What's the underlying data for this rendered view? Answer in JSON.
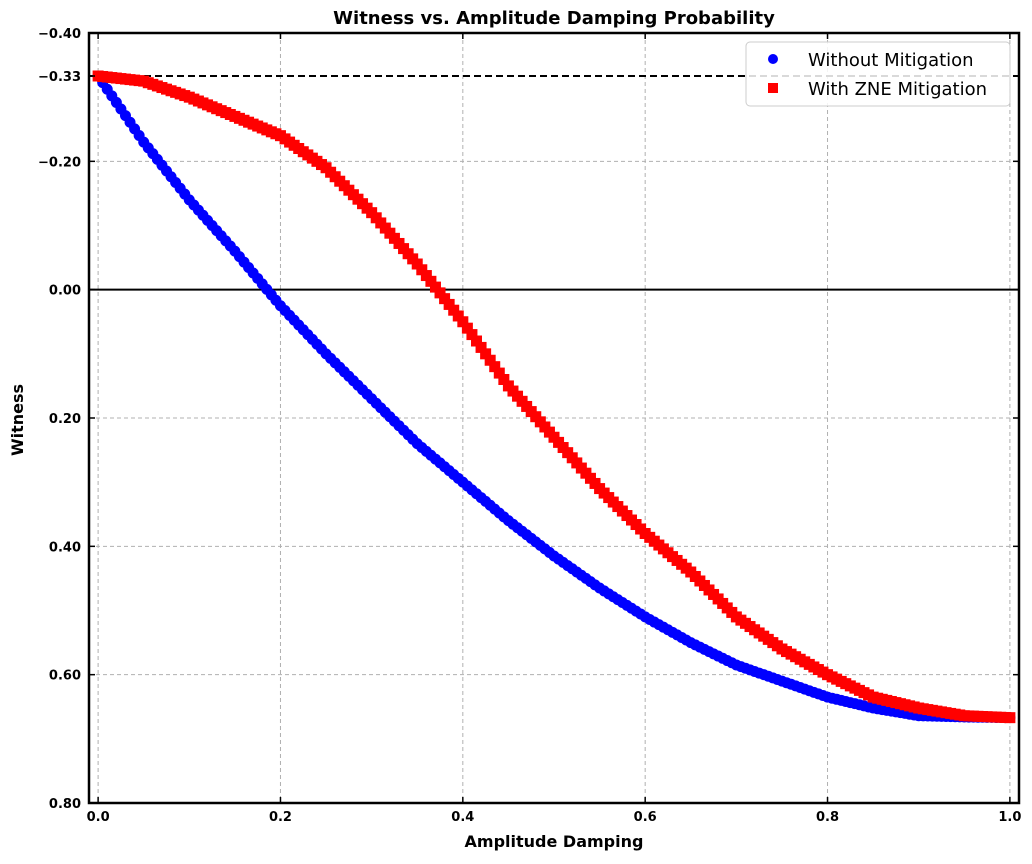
{
  "chart_data": {
    "type": "scatter",
    "title": "Witness vs. Amplitude Damping Probability",
    "xlabel": "Amplitude Damping",
    "ylabel": "Witness",
    "xlim": [
      -0.01,
      1.01
    ],
    "ylim": [
      -0.4,
      0.8
    ],
    "y_inverted": true,
    "grid": true,
    "legend_position": "top-right",
    "x_ticks": [
      0.0,
      0.2,
      0.4,
      0.6,
      0.8,
      1.0
    ],
    "x_tick_labels": [
      "0.0",
      "0.2",
      "0.4",
      "0.6",
      "0.8",
      "1.0"
    ],
    "y_ticks": [
      -0.4,
      -0.333,
      -0.2,
      0.0,
      0.2,
      0.4,
      0.6,
      0.8
    ],
    "y_tick_labels": [
      "−0.40",
      "−0.33",
      "−0.20",
      "0.00",
      "0.20",
      "0.40",
      "0.60",
      "0.80"
    ],
    "reference_lines": [
      {
        "y": -0.333,
        "style": "dashed",
        "color": "#000000"
      },
      {
        "y": 0.0,
        "style": "solid",
        "color": "#000000"
      }
    ],
    "series": [
      {
        "name": "Without Mitigation",
        "marker": "circle",
        "color": "#0000ff",
        "x": [
          0.0,
          0.05,
          0.1,
          0.15,
          0.2,
          0.25,
          0.3,
          0.35,
          0.4,
          0.45,
          0.5,
          0.55,
          0.6,
          0.65,
          0.7,
          0.75,
          0.8,
          0.85,
          0.9,
          0.95,
          1.0
        ],
        "y": [
          -0.333,
          -0.23,
          -0.14,
          -0.06,
          0.025,
          0.1,
          0.17,
          0.24,
          0.3,
          0.36,
          0.415,
          0.465,
          0.51,
          0.55,
          0.585,
          0.61,
          0.635,
          0.652,
          0.664,
          0.666,
          0.667
        ]
      },
      {
        "name": "With ZNE Mitigation",
        "marker": "square",
        "color": "#ff0000",
        "x": [
          0.0,
          0.05,
          0.1,
          0.15,
          0.2,
          0.25,
          0.3,
          0.35,
          0.4,
          0.45,
          0.5,
          0.55,
          0.6,
          0.65,
          0.7,
          0.75,
          0.8,
          0.85,
          0.9,
          0.95,
          1.0
        ],
        "y": [
          -0.333,
          -0.325,
          -0.3,
          -0.27,
          -0.24,
          -0.19,
          -0.12,
          -0.04,
          0.05,
          0.15,
          0.23,
          0.31,
          0.38,
          0.44,
          0.51,
          0.56,
          0.6,
          0.635,
          0.652,
          0.664,
          0.667
        ]
      }
    ]
  }
}
